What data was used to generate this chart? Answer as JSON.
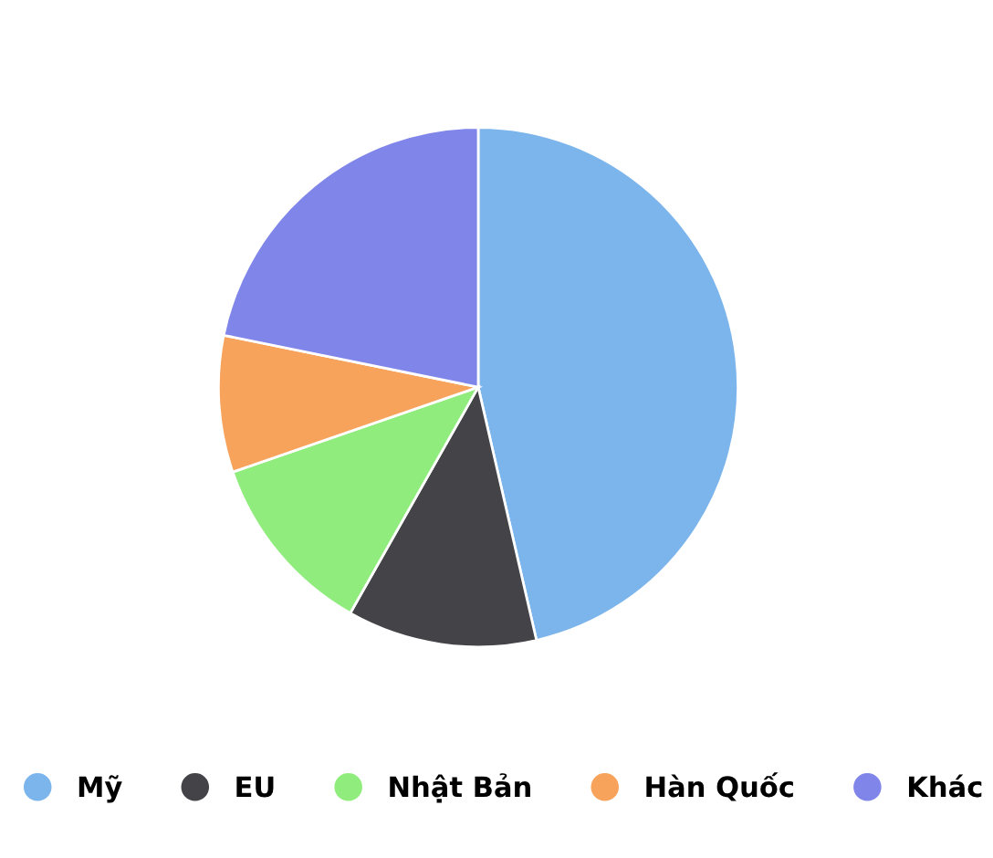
{
  "chart_data": {
    "type": "pie",
    "categories": [
      "Mỹ",
      "EU",
      "Nhật Bản",
      "Hàn Quốc",
      "Khác"
    ],
    "values": [
      46.4,
      11.8,
      11.5,
      8.5,
      21.8
    ],
    "colors": [
      "#7cb5ec",
      "#434348",
      "#90ed7d",
      "#f7a35c",
      "#8085e9"
    ],
    "legend": "bottom"
  }
}
